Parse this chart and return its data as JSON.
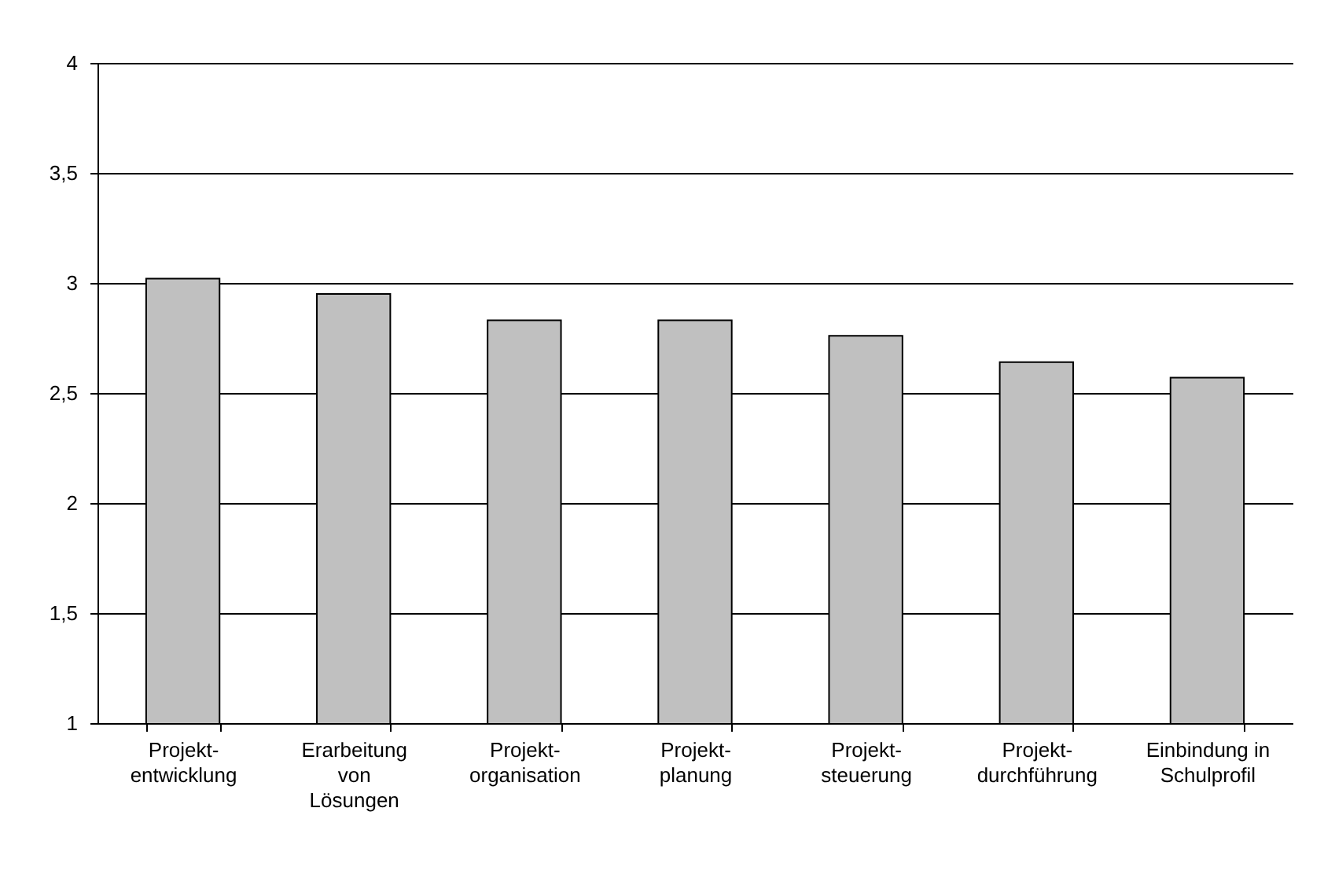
{
  "chart_data": {
    "type": "bar",
    "categories": [
      "Projekt-\nentwicklung",
      "Erarbeitung\nvon\nLösungen",
      "Projekt-\norganisation",
      "Projekt-\nplanung",
      "Projekt-\nsteuerung",
      "Projekt-\ndurchführung",
      "Einbindung in\nSchulprofil"
    ],
    "values": [
      3.02,
      2.95,
      2.83,
      2.83,
      2.76,
      2.64,
      2.57
    ],
    "color": "#c0c0c0",
    "ylim": [
      1,
      4
    ],
    "yticks": [
      {
        "value": 1,
        "label": "1"
      },
      {
        "value": 1.5,
        "label": "1,5"
      },
      {
        "value": 2,
        "label": "2"
      },
      {
        "value": 2.5,
        "label": "2,5"
      },
      {
        "value": 3,
        "label": "3"
      },
      {
        "value": 3.5,
        "label": "3,5"
      },
      {
        "value": 4,
        "label": "4"
      }
    ],
    "grid": "y"
  }
}
